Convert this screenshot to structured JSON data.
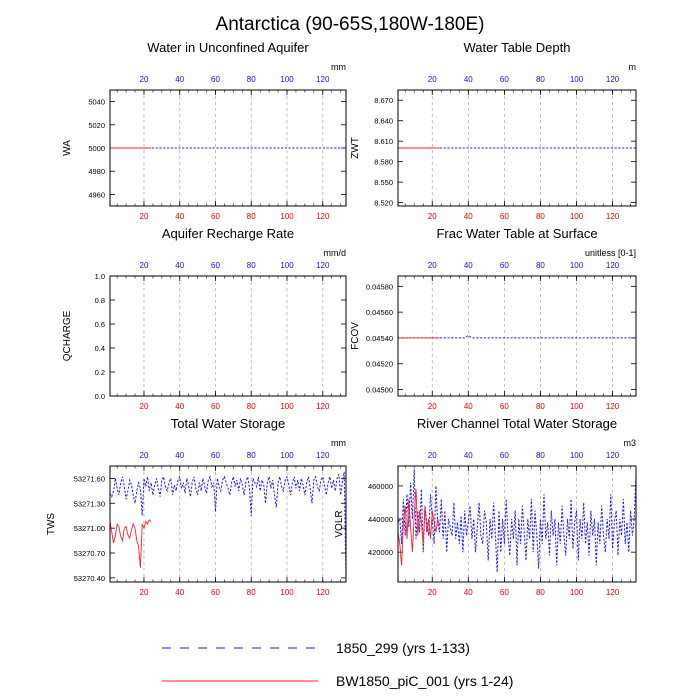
{
  "figure": {
    "title": "Antarctica (90-65S,180W-180E)",
    "legend": [
      {
        "label": "1850_299 (yrs 1-133)",
        "color": "#1a1aff",
        "dash": "dashed"
      },
      {
        "label": "BW1850_piC_001 (yrs 1-24)",
        "color": "#ff2020",
        "dash": "solid"
      }
    ]
  },
  "chart_data": [
    {
      "type": "line",
      "title": "Water in Unconfined Aquifer",
      "ylabel": "WA",
      "units": "mm",
      "xlim": [
        1,
        133
      ],
      "ylim": [
        4950,
        5050
      ],
      "yticks": [
        4960,
        4980,
        5000,
        5020,
        5040
      ],
      "ytick_labels": [
        "4960",
        "4980",
        "5000",
        "5020",
        "5040"
      ],
      "xticks": [
        20,
        40,
        60,
        80,
        100,
        120
      ],
      "series": [
        {
          "name": "1850_299",
          "x": [
            1,
            133
          ],
          "values": [
            5000,
            5000
          ]
        },
        {
          "name": "BW1850_piC_001",
          "x": [
            1,
            24
          ],
          "values": [
            5000,
            5000
          ]
        }
      ]
    },
    {
      "type": "line",
      "title": "Water Table Depth",
      "ylabel": "ZWT",
      "units": "m",
      "xlim": [
        1,
        133
      ],
      "ylim": [
        8.515,
        8.685
      ],
      "yticks": [
        8.52,
        8.55,
        8.58,
        8.61,
        8.64,
        8.67
      ],
      "ytick_labels": [
        "8.520",
        "8.550",
        "8.580",
        "8.610",
        "8.640",
        "8.670"
      ],
      "xticks": [
        20,
        40,
        60,
        80,
        100,
        120
      ],
      "series": [
        {
          "name": "1850_299",
          "x": [
            1,
            133
          ],
          "values": [
            8.6,
            8.6
          ]
        },
        {
          "name": "BW1850_piC_001",
          "x": [
            1,
            24
          ],
          "values": [
            8.6,
            8.6
          ]
        }
      ]
    },
    {
      "type": "line",
      "title": "Aquifer Recharge Rate",
      "ylabel": "QCHARGE",
      "units": "mm/d",
      "xlim": [
        1,
        133
      ],
      "ylim": [
        0,
        1
      ],
      "yticks": [
        0,
        0.2,
        0.4,
        0.6,
        0.8,
        1.0
      ],
      "ytick_labels": [
        "0.0",
        "0.2",
        "0.4",
        "0.6",
        "0.8",
        "1.0"
      ],
      "xticks": [
        20,
        40,
        60,
        80,
        100,
        120
      ],
      "series": []
    },
    {
      "type": "line",
      "title": "Frac Water Table at Surface",
      "ylabel": "FCOV",
      "units": "unitless [0-1]",
      "xlim": [
        1,
        133
      ],
      "ylim": [
        0.04495,
        0.04588
      ],
      "yticks": [
        0.045,
        0.0452,
        0.0454,
        0.0456,
        0.0458
      ],
      "ytick_labels": [
        "0.04500",
        "0.04520",
        "0.04540",
        "0.04560",
        "0.04580"
      ],
      "xticks": [
        20,
        40,
        60,
        80,
        100,
        120
      ],
      "series": [
        {
          "name": "1850_299",
          "x": [
            1,
            38,
            39,
            40,
            41,
            42,
            133
          ],
          "values": [
            0.0454,
            0.0454,
            0.04541,
            0.04542,
            0.04541,
            0.0454,
            0.0454
          ]
        },
        {
          "name": "BW1850_piC_001",
          "x": [
            1,
            24
          ],
          "values": [
            0.0454,
            0.0454
          ]
        }
      ]
    },
    {
      "type": "line",
      "title": "Total Water Storage",
      "ylabel": "TWS",
      "units": "mm",
      "xlim": [
        1,
        133
      ],
      "ylim": [
        53270.35,
        53271.75
      ],
      "yticks": [
        53270.4,
        53270.7,
        53271.0,
        53271.3,
        53271.6
      ],
      "ytick_labels": [
        "53270.40",
        "53270.70",
        "53271.00",
        "53271.30",
        "53271.60"
      ],
      "xticks": [
        20,
        40,
        60,
        80,
        100,
        120
      ],
      "series": [
        {
          "name": "1850_299",
          "x": [
            1,
            2,
            3,
            4,
            5,
            6,
            7,
            8,
            9,
            10,
            11,
            12,
            13,
            14,
            15,
            16,
            17,
            18,
            19,
            20,
            21,
            22,
            23,
            24,
            25,
            26,
            27,
            28,
            29,
            30,
            31,
            32,
            33,
            34,
            35,
            36,
            37,
            38,
            39,
            40,
            41,
            42,
            43,
            44,
            45,
            46,
            47,
            48,
            49,
            50,
            51,
            52,
            53,
            54,
            55,
            56,
            57,
            58,
            59,
            60,
            61,
            62,
            63,
            64,
            65,
            66,
            67,
            68,
            69,
            70,
            71,
            72,
            73,
            74,
            75,
            76,
            77,
            78,
            79,
            80,
            81,
            82,
            83,
            84,
            85,
            86,
            87,
            88,
            89,
            90,
            91,
            92,
            93,
            94,
            95,
            96,
            97,
            98,
            99,
            100,
            101,
            102,
            103,
            104,
            105,
            106,
            107,
            108,
            109,
            110,
            111,
            112,
            113,
            114,
            115,
            116,
            117,
            118,
            119,
            120,
            121,
            122,
            123,
            124,
            125,
            126,
            127,
            128,
            129,
            130,
            131,
            132,
            133
          ],
          "values": [
            53271.42,
            53271.38,
            53271.45,
            53271.6,
            53271.48,
            53271.4,
            53271.55,
            53271.62,
            53271.5,
            53271.35,
            53271.45,
            53271.58,
            53271.52,
            53271.4,
            53271.3,
            53271.45,
            53271.55,
            53271.48,
            53271.15,
            53271.6,
            53271.5,
            53271.62,
            53271.45,
            53271.55,
            53271.4,
            53271.52,
            53271.6,
            53271.48,
            53271.38,
            53271.58,
            53271.62,
            53271.5,
            53271.45,
            53271.55,
            53271.6,
            53271.4,
            53271.52,
            53271.45,
            53271.58,
            53271.62,
            53271.48,
            53271.55,
            53271.42,
            53271.6,
            53271.5,
            53271.38,
            53271.55,
            53271.62,
            53271.48,
            53271.4,
            53271.55,
            53271.45,
            53271.6,
            53271.5,
            53271.42,
            53271.58,
            53271.62,
            53271.5,
            53271.55,
            53271.2,
            53271.6,
            53271.5,
            53271.45,
            53271.58,
            53271.62,
            53271.55,
            53271.48,
            53271.4,
            53271.55,
            53271.62,
            53271.5,
            53271.58,
            53271.45,
            53271.6,
            53271.52,
            53271.4,
            53271.55,
            53271.62,
            53271.48,
            53271.15,
            53271.6,
            53271.55,
            53271.5,
            53271.62,
            53271.45,
            53271.58,
            53271.52,
            53271.3,
            53271.55,
            53271.62,
            53271.48,
            53271.58,
            53271.4,
            53271.25,
            53271.55,
            53271.62,
            53271.5,
            53271.45,
            53271.58,
            53271.62,
            53271.52,
            53271.4,
            53271.55,
            53271.62,
            53271.48,
            53271.58,
            53271.45,
            53271.6,
            53271.52,
            53271.4,
            53271.55,
            53271.62,
            53271.48,
            53271.3,
            53271.58,
            53271.62,
            53271.5,
            53271.45,
            53271.58,
            53271.62,
            53271.52,
            53271.4,
            53271.55,
            53271.62,
            53271.48,
            53271.58,
            53271.45,
            53271.6,
            53271.65,
            53271.4,
            53271.55,
            53271.68,
            53270.38
          ]
        },
        {
          "name": "BW1850_piC_001",
          "x": [
            1,
            2,
            3,
            4,
            5,
            6,
            7,
            8,
            9,
            10,
            11,
            12,
            13,
            14,
            15,
            16,
            17,
            18,
            19,
            20,
            21,
            22,
            23,
            24
          ],
          "values": [
            53271.08,
            53270.95,
            53270.82,
            53270.92,
            53271.05,
            53271.02,
            53270.9,
            53270.85,
            53271.0,
            53271.02,
            53270.92,
            53270.88,
            53270.98,
            53271.05,
            53271.0,
            53270.85,
            53270.78,
            53270.52,
            53271.05,
            53271.0,
            53271.08,
            53271.05,
            53271.1,
            53271.08
          ]
        }
      ]
    },
    {
      "type": "line",
      "title": "River Channel Total Water Storage",
      "ylabel": "VOLR",
      "units": "m3",
      "xlim": [
        1,
        133
      ],
      "ylim": [
        402000,
        472000
      ],
      "yticks": [
        420000,
        440000,
        460000
      ],
      "ytick_labels": [
        "420000",
        "440000",
        "460000"
      ],
      "xticks": [
        20,
        40,
        60,
        80,
        100,
        120
      ],
      "series": [
        {
          "name": "1850_299",
          "x": [
            1,
            2,
            3,
            4,
            5,
            6,
            7,
            8,
            9,
            10,
            11,
            12,
            13,
            14,
            15,
            16,
            17,
            18,
            19,
            20,
            21,
            22,
            23,
            24,
            25,
            26,
            27,
            28,
            29,
            30,
            31,
            32,
            33,
            34,
            35,
            36,
            37,
            38,
            39,
            40,
            41,
            42,
            43,
            44,
            45,
            46,
            47,
            48,
            49,
            50,
            51,
            52,
            53,
            54,
            55,
            56,
            57,
            58,
            59,
            60,
            61,
            62,
            63,
            64,
            65,
            66,
            67,
            68,
            69,
            70,
            71,
            72,
            73,
            74,
            75,
            76,
            77,
            78,
            79,
            80,
            81,
            82,
            83,
            84,
            85,
            86,
            87,
            88,
            89,
            90,
            91,
            92,
            93,
            94,
            95,
            96,
            97,
            98,
            99,
            100,
            101,
            102,
            103,
            104,
            105,
            106,
            107,
            108,
            109,
            110,
            111,
            112,
            113,
            114,
            115,
            116,
            117,
            118,
            119,
            120,
            121,
            122,
            123,
            124,
            125,
            126,
            127,
            128,
            129,
            130,
            131,
            132,
            133
          ],
          "values": [
            438000,
            440000,
            425000,
            452000,
            430000,
            455000,
            435000,
            462000,
            440000,
            470000,
            428000,
            445000,
            432000,
            458000,
            420000,
            448000,
            438000,
            430000,
            455000,
            440000,
            425000,
            460000,
            438000,
            432000,
            452000,
            428000,
            445000,
            420000,
            440000,
            435000,
            430000,
            450000,
            428000,
            438000,
            425000,
            442000,
            420000,
            445000,
            430000,
            438000,
            448000,
            428000,
            440000,
            420000,
            435000,
            450000,
            430000,
            425000,
            445000,
            438000,
            415000,
            440000,
            428000,
            450000,
            430000,
            408000,
            445000,
            420000,
            440000,
            425000,
            452000,
            430000,
            418000,
            440000,
            428000,
            445000,
            412000,
            440000,
            425000,
            448000,
            432000,
            415000,
            440000,
            428000,
            452000,
            420000,
            445000,
            430000,
            410000,
            440000,
            425000,
            455000,
            428000,
            438000,
            418000,
            445000,
            430000,
            440000,
            412000,
            438000,
            425000,
            448000,
            430000,
            418000,
            440000,
            428000,
            452000,
            422000,
            438000,
            445000,
            415000,
            440000,
            428000,
            450000,
            425000,
            438000,
            418000,
            445000,
            430000,
            440000,
            412000,
            438000,
            425000,
            448000,
            430000,
            420000,
            440000,
            428000,
            455000,
            422000,
            438000,
            445000,
            418000,
            440000,
            430000,
            452000,
            425000,
            438000,
            420000,
            445000,
            430000,
            440000,
            466000
          ]
        },
        {
          "name": "BW1850_piC_001",
          "x": [
            1,
            2,
            3,
            4,
            5,
            6,
            7,
            8,
            9,
            10,
            11,
            12,
            13,
            14,
            15,
            16,
            17,
            18,
            19,
            20,
            21,
            22,
            23,
            24
          ],
          "values": [
            432000,
            425000,
            412000,
            438000,
            448000,
            428000,
            452000,
            435000,
            420000,
            442000,
            458000,
            430000,
            445000,
            438000,
            425000,
            448000,
            432000,
            440000,
            428000,
            445000,
            438000,
            432000,
            440000,
            436000
          ]
        }
      ]
    }
  ]
}
